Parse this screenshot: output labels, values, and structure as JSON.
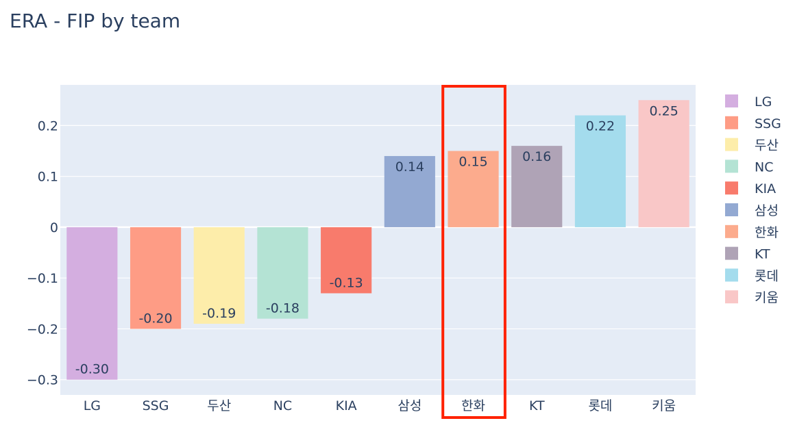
{
  "chart_data": {
    "type": "bar",
    "title": "ERA - FIP by team",
    "xlabel": "",
    "ylabel": "",
    "categories": [
      "LG",
      "SSG",
      "두산",
      "NC",
      "KIA",
      "삼성",
      "한화",
      "KT",
      "롯데",
      "키움"
    ],
    "values": [
      -0.3,
      -0.2,
      -0.19,
      -0.18,
      -0.13,
      0.14,
      0.15,
      0.16,
      0.22,
      0.25
    ],
    "value_labels": [
      "-0.30",
      "-0.20",
      "-0.19",
      "-0.18",
      "-0.13",
      "0.14",
      "0.15",
      "0.16",
      "0.22",
      "0.25"
    ],
    "colors": [
      "#d4aee0",
      "#fe9c85",
      "#fdedaa",
      "#b4e3d4",
      "#f87b6c",
      "#93a9d2",
      "#fcab8d",
      "#afa3b6",
      "#a4dced",
      "#f9c7c7"
    ],
    "ylim": [
      -0.33,
      0.28
    ],
    "y_ticks": [
      0.2,
      0.1,
      0,
      -0.1,
      -0.2,
      -0.3
    ],
    "y_tick_labels": [
      "0.2",
      "0.1",
      "0",
      "−0.1",
      "−0.2",
      "−0.3"
    ],
    "grid": true,
    "legend_position": "right",
    "highlight": {
      "category": "한화",
      "color": "#ff2200"
    },
    "background_color": "#e5ecf6"
  }
}
